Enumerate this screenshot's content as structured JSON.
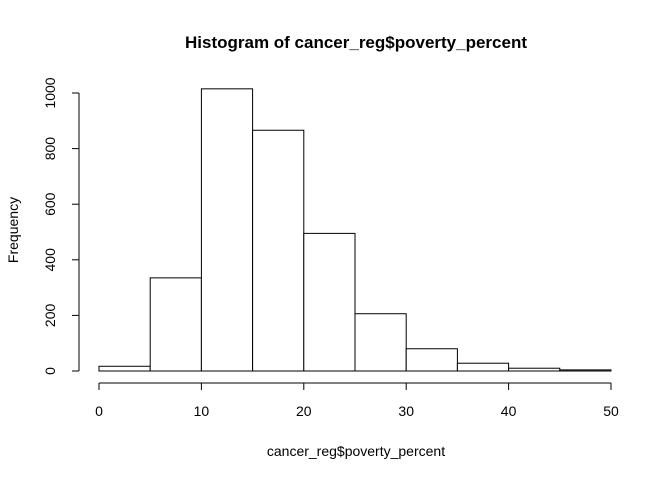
{
  "chart_data": {
    "type": "bar",
    "title": "Histogram of cancer_reg$poverty_percent",
    "xlabel": "cancer_reg$poverty_percent",
    "ylabel": "Frequency",
    "bins": [
      {
        "start": 0,
        "end": 5,
        "value": 17
      },
      {
        "start": 5,
        "end": 10,
        "value": 335
      },
      {
        "start": 10,
        "end": 15,
        "value": 1015
      },
      {
        "start": 15,
        "end": 20,
        "value": 866
      },
      {
        "start": 20,
        "end": 25,
        "value": 495
      },
      {
        "start": 25,
        "end": 30,
        "value": 206
      },
      {
        "start": 30,
        "end": 35,
        "value": 80
      },
      {
        "start": 35,
        "end": 40,
        "value": 28
      },
      {
        "start": 40,
        "end": 45,
        "value": 10
      },
      {
        "start": 45,
        "end": 50,
        "value": 4
      }
    ],
    "xlim": [
      0,
      50
    ],
    "ylim": [
      0,
      1000
    ],
    "xticks": [
      0,
      10,
      20,
      30,
      40,
      50
    ],
    "yticks": [
      0,
      200,
      400,
      600,
      800,
      1000
    ],
    "grid": false,
    "legend": "none"
  }
}
